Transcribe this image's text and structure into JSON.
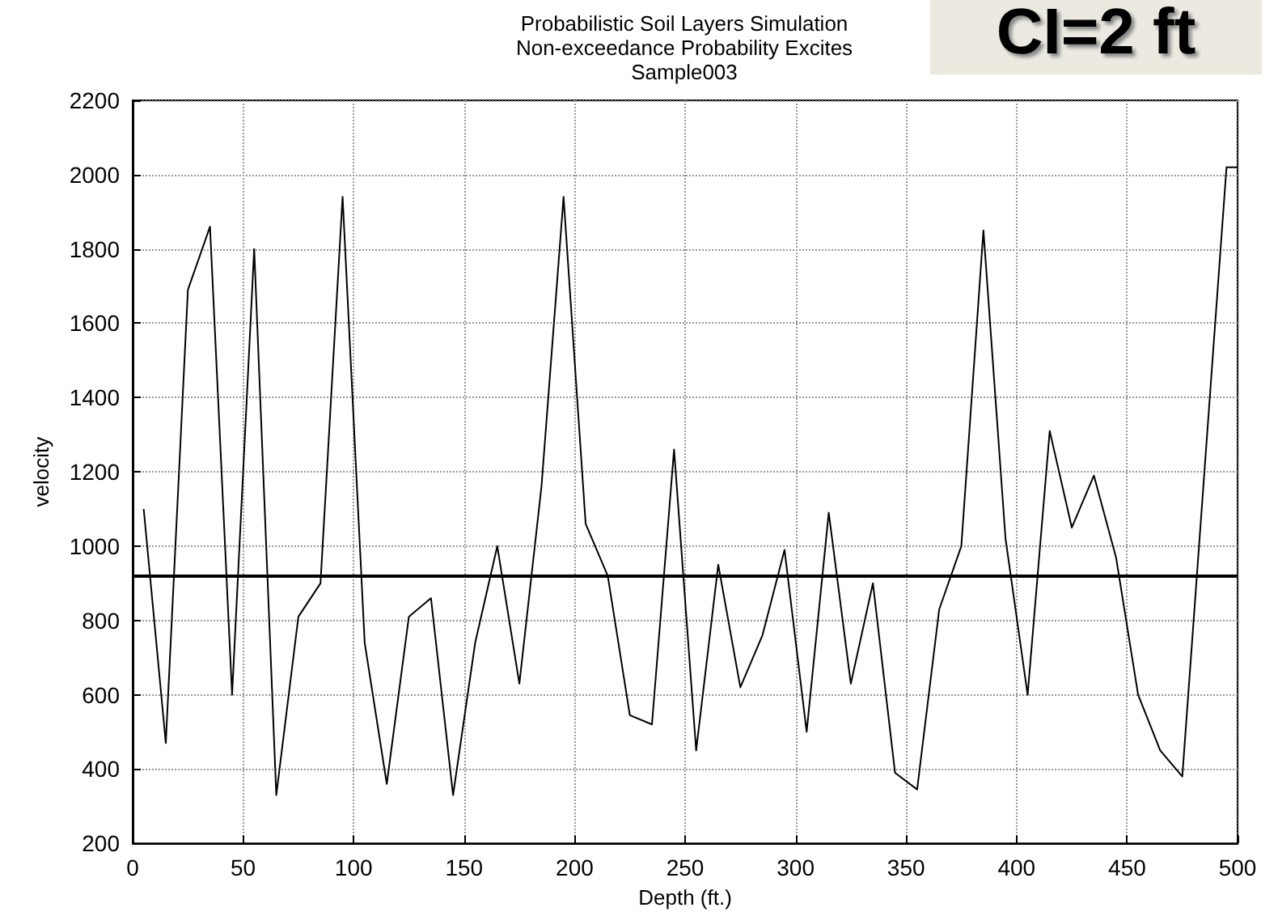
{
  "chart_data": {
    "type": "line",
    "title": "Probabilistic Soil Layers Simulation\nNon-exceedance Probability Excites\nSample003",
    "annotations": [
      "CI=2 ft"
    ],
    "xlabel": "Depth (ft.)",
    "ylabel": "velocity",
    "x": [
      5,
      15,
      25,
      35,
      45,
      55,
      65,
      75,
      85,
      95,
      105,
      115,
      125,
      135,
      145,
      155,
      165,
      175,
      185,
      195,
      205,
      215,
      225,
      235,
      245,
      255,
      265,
      275,
      285,
      295,
      305,
      315,
      325,
      335,
      345,
      355,
      365,
      375,
      385,
      395,
      405,
      415,
      425,
      435,
      445,
      455,
      465,
      475,
      495,
      500
    ],
    "series": [
      {
        "color": "#000000",
        "values": [
          1100,
          470,
          1690,
          1860,
          600,
          1800,
          330,
          810,
          900,
          1940,
          740,
          360,
          810,
          860,
          330,
          740,
          1000,
          630,
          1160,
          1940,
          1060,
          920,
          545,
          520,
          1260,
          450,
          950,
          620,
          760,
          990,
          500,
          1090,
          630,
          900,
          390,
          345,
          830,
          1000,
          1850,
          1020,
          600,
          1310,
          1050,
          1190,
          970,
          600,
          450,
          380,
          2020,
          2020
        ]
      }
    ],
    "xlim": [
      0,
      500
    ],
    "xticks": [
      0,
      50,
      100,
      150,
      200,
      250,
      300,
      350,
      400,
      450,
      500
    ],
    "ylim": [
      200,
      2200
    ],
    "yticks": [
      200,
      400,
      600,
      800,
      1000,
      1200,
      1400,
      1600,
      1800,
      2000,
      2200
    ],
    "ref_lines": [
      {
        "axis": "y",
        "value": 920,
        "color": "#000000"
      }
    ],
    "grid": true,
    "marker": "none",
    "line_style": "solid"
  }
}
